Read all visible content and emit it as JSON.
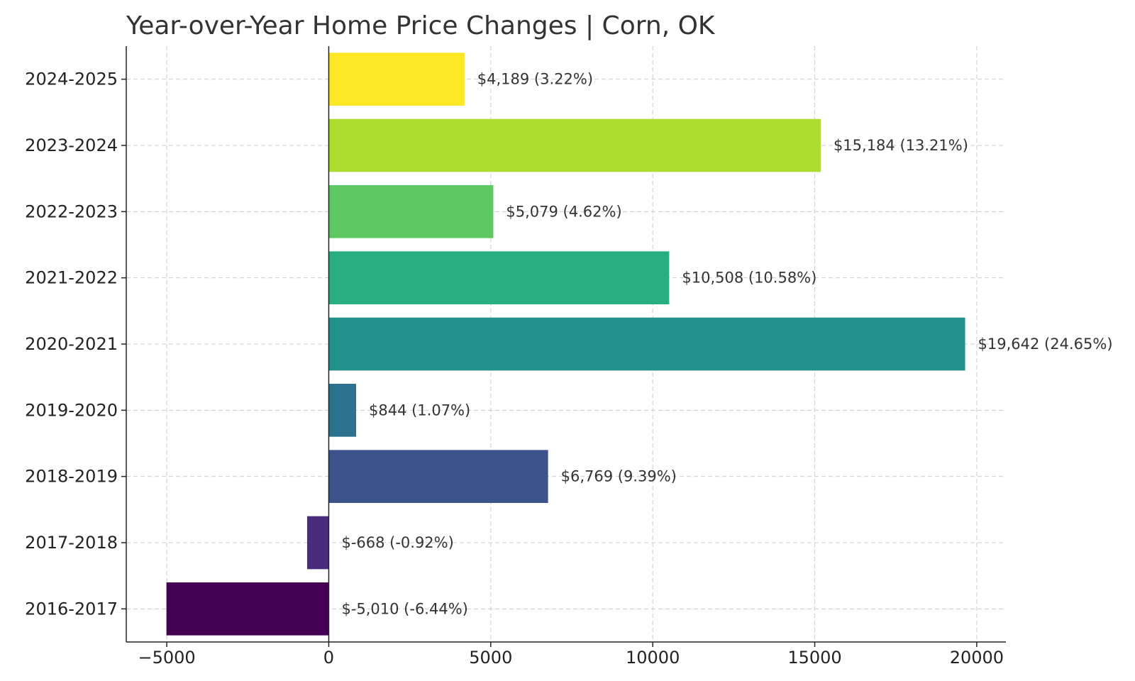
{
  "chart_data": {
    "type": "bar",
    "orientation": "horizontal",
    "title": "Year-over-Year Home Price Changes | Corn, OK",
    "xlabel": "",
    "ylabel": "",
    "xlim": [
      -6250,
      20900
    ],
    "xticks": [
      -5000,
      0,
      5000,
      10000,
      15000,
      20000
    ],
    "xtick_labels": [
      "−5000",
      "0",
      "5000",
      "10000",
      "15000",
      "20000"
    ],
    "grid": true,
    "legend": "none",
    "categories": [
      "2016-2017",
      "2017-2018",
      "2018-2019",
      "2019-2020",
      "2020-2021",
      "2021-2022",
      "2022-2023",
      "2023-2024",
      "2024-2025"
    ],
    "values": [
      -5010,
      -668,
      6769,
      844,
      19642,
      10508,
      5079,
      15184,
      4189
    ],
    "data_labels": [
      "$-5,010 (-6.44%)",
      "$-668 (-0.92%)",
      "$6,769 (9.39%)",
      "$844 (1.07%)",
      "$19,642 (24.65%)",
      "$10,508 (10.58%)",
      "$5,079 (4.62%)",
      "$15,184 (13.21%)",
      "$4,189 (3.22%)"
    ],
    "colors": [
      "#440154",
      "#472d7b",
      "#3b528b",
      "#2c728e",
      "#21918c",
      "#28ae80",
      "#5ec962",
      "#addc30",
      "#fde725"
    ]
  }
}
